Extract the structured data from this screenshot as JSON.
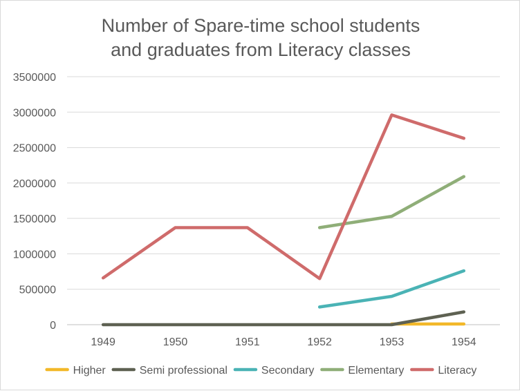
{
  "chart_data": {
    "type": "line",
    "title_lines": [
      "Number of Spare-time school students",
      "and graduates from Literacy classes"
    ],
    "xlabel": "",
    "ylabel": "",
    "categories": [
      "1949",
      "1950",
      "1951",
      "1952",
      "1953",
      "1954"
    ],
    "ylim": [
      0,
      3500000
    ],
    "yticks": [
      0,
      500000,
      1000000,
      1500000,
      2000000,
      2500000,
      3000000,
      3500000
    ],
    "ytick_labels": [
      "0",
      "500000",
      "1000000",
      "1500000",
      "2000000",
      "2500000",
      "3000000",
      "3500000"
    ],
    "grid": true,
    "legend_position": "bottom",
    "series": [
      {
        "name": "Higher",
        "color": "#f2b829",
        "values": [
          null,
          null,
          null,
          null,
          10000,
          10000
        ]
      },
      {
        "name": "Semi professional",
        "color": "#5e6152",
        "values": [
          0,
          0,
          0,
          0,
          0,
          180000
        ]
      },
      {
        "name": "Secondary",
        "color": "#4ab3b5",
        "values": [
          null,
          null,
          null,
          250000,
          400000,
          760000
        ]
      },
      {
        "name": "Elementary",
        "color": "#8fae78",
        "values": [
          null,
          null,
          null,
          1370000,
          1530000,
          2090000
        ]
      },
      {
        "name": "Literacy",
        "color": "#cf6b6b",
        "values": [
          660000,
          1370000,
          1370000,
          650000,
          2960000,
          2630000
        ]
      }
    ]
  }
}
